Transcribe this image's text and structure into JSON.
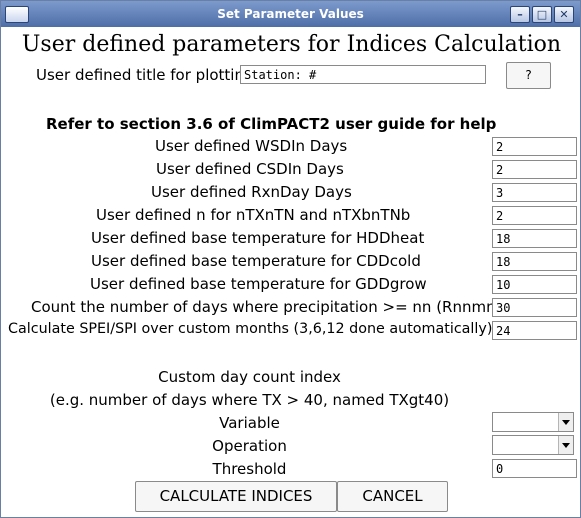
{
  "window": {
    "title": "Set Parameter Values",
    "controls": {
      "minimize": "–",
      "maximize": "□",
      "close": "✕"
    }
  },
  "heading": "User defined parameters for Indices Calculation",
  "plot_title": {
    "label": "User defined title for plotting:",
    "value": "Station: #",
    "help_label": "?"
  },
  "help_note": "Refer to section 3.6 of ClimPACT2 user guide for help",
  "parameters": [
    {
      "label": "User defined WSDIn Days",
      "value": "2"
    },
    {
      "label": "User defined CSDIn Days",
      "value": "2"
    },
    {
      "label": "User defined RxnDay Days",
      "value": "3"
    },
    {
      "label": "User defined n for nTXnTN and nTXbnTNb",
      "value": "2"
    },
    {
      "label": "User defined base temperature for HDDheat",
      "value": "18"
    },
    {
      "label": "User defined base temperature for CDDcold",
      "value": "18"
    },
    {
      "label": "User defined base temperature for GDDgrow",
      "value": "10"
    },
    {
      "label": "Count the number of days where precipitation >= nn (Rnnmm)",
      "value": "30"
    },
    {
      "label": "Calculate SPEI/SPI over custom months (3,6,12 done automatically)",
      "value": "24"
    }
  ],
  "custom_index": {
    "title": "Custom day count index",
    "example": "(e.g. number of days where TX > 40, named TXgt40)",
    "variable_label": "Variable",
    "variable_value": "",
    "operation_label": "Operation",
    "operation_value": "",
    "threshold_label": "Threshold",
    "threshold_value": "0"
  },
  "buttons": {
    "calculate": "CALCULATE INDICES",
    "cancel": "CANCEL"
  }
}
